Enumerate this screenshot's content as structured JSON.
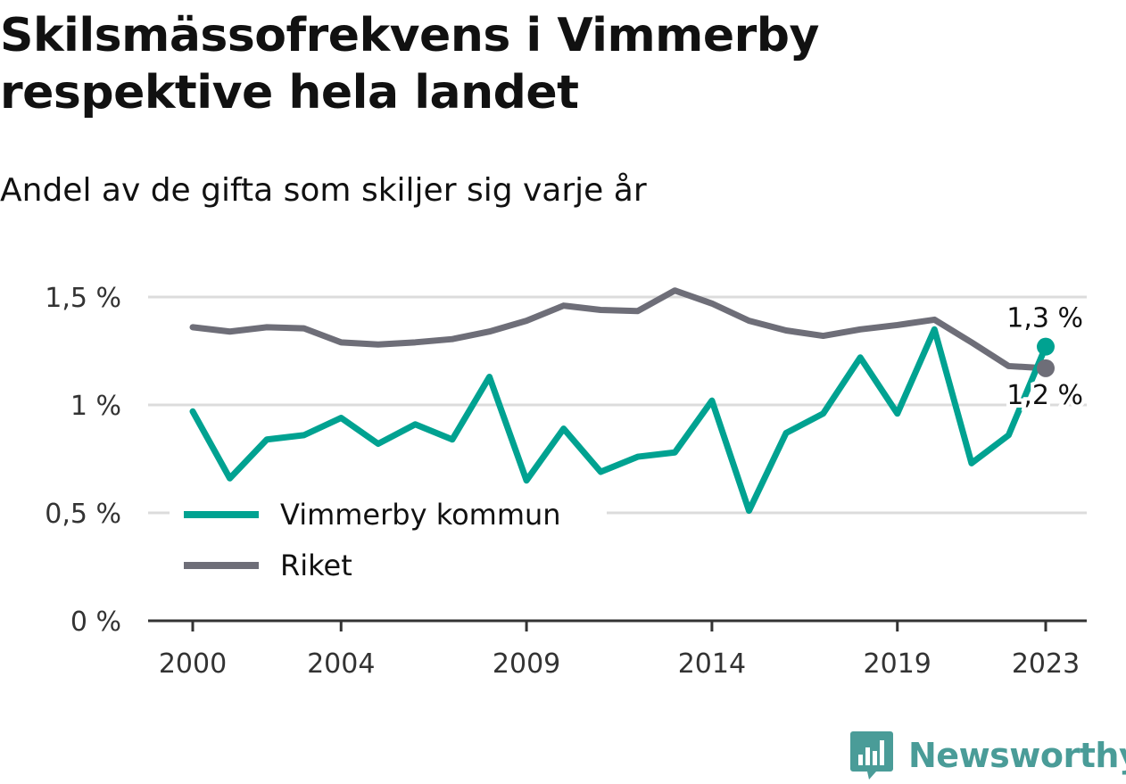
{
  "header": {
    "title": "Skilsmässofrekvens i Vimmerby respektive hela landet",
    "subtitle": "Andel av de gifta som skiljer sig varje år"
  },
  "brand": {
    "name": "Newsworthy",
    "icon": "newsworthy-logo-icon",
    "color": "#4a9c98"
  },
  "chart_data": {
    "type": "line",
    "title": "Skilsmässofrekvens i Vimmerby respektive hela landet",
    "subtitle": "Andel av de gifta som skiljer sig varje år",
    "x": [
      2000,
      2001,
      2002,
      2003,
      2004,
      2005,
      2006,
      2007,
      2008,
      2009,
      2010,
      2011,
      2012,
      2013,
      2014,
      2015,
      2016,
      2017,
      2018,
      2019,
      2020,
      2021,
      2022,
      2023
    ],
    "x_ticks": [
      2000,
      2004,
      2009,
      2014,
      2019,
      2023
    ],
    "x_tick_labels": [
      "2000",
      "2004",
      "2009",
      "2014",
      "2019",
      "2023"
    ],
    "ylim": [
      0,
      1.5
    ],
    "y_ticks": [
      0,
      0.5,
      1,
      1.5
    ],
    "y_tick_labels": [
      "0 %",
      "0,5 %",
      "1 %",
      "1,5 %"
    ],
    "grid": true,
    "legend_position": "bottom-left",
    "series": [
      {
        "name": "Vimmerby kommun",
        "color": "#00a291",
        "values": [
          0.97,
          0.66,
          0.84,
          0.86,
          0.94,
          0.82,
          0.91,
          0.84,
          1.13,
          0.65,
          0.89,
          0.69,
          0.76,
          0.78,
          1.02,
          0.51,
          0.87,
          0.96,
          1.22,
          0.96,
          1.35,
          0.73,
          0.86,
          1.27
        ],
        "end_label": "1,3 %"
      },
      {
        "name": "Riket",
        "color": "#6e6e78",
        "values": [
          1.36,
          1.34,
          1.36,
          1.355,
          1.29,
          1.28,
          1.29,
          1.305,
          1.34,
          1.39,
          1.46,
          1.44,
          1.435,
          1.53,
          1.47,
          1.39,
          1.345,
          1.32,
          1.35,
          1.37,
          1.395,
          1.29,
          1.18,
          1.17
        ],
        "end_label": "1,2 %"
      }
    ]
  }
}
